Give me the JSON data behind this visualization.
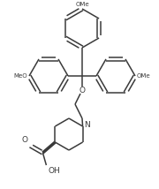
{
  "bg_color": "#ffffff",
  "line_color": "#3a3a3a",
  "line_width": 1.1,
  "figsize": [
    1.8,
    2.14
  ],
  "dpi": 100,
  "xlim": [
    0,
    180
  ],
  "ylim": [
    0,
    214
  ]
}
